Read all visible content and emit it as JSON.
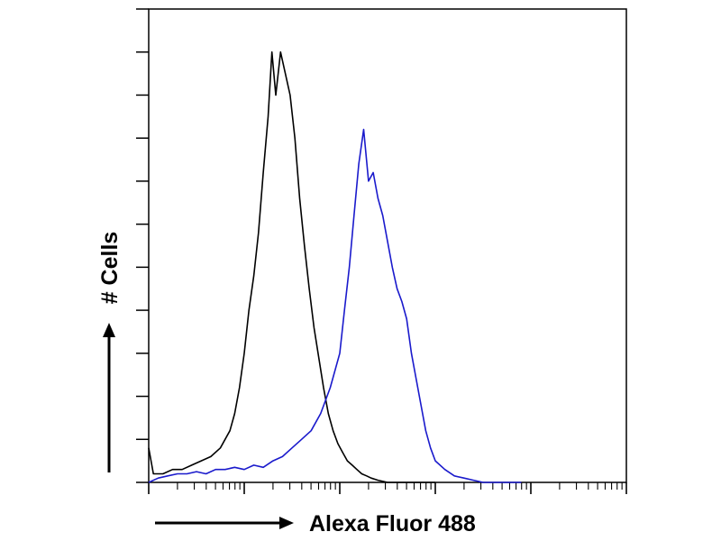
{
  "chart_data": {
    "type": "line",
    "title": "",
    "xlabel": "Alexa Fluor 488",
    "ylabel": "# Cells",
    "xscale": "log",
    "xlim": [
      1,
      100000
    ],
    "ylim": [
      0,
      1.1
    ],
    "grid": false,
    "legend": "none",
    "y_ticks": 11,
    "series": [
      {
        "color": "#000000",
        "x": [
          1.0,
          1.12,
          1.41,
          1.78,
          2.24,
          2.82,
          3.55,
          4.47,
          5.62,
          7.08,
          7.94,
          8.91,
          10.0,
          11.2,
          12.6,
          14.1,
          15.8,
          17.8,
          19.5,
          21.4,
          24.0,
          26.9,
          30.2,
          33.9,
          38.0,
          42.7,
          47.9,
          53.7,
          60.3,
          67.6,
          75.9,
          85.1,
          95.5,
          107,
          120,
          135,
          151,
          170,
          191,
          213,
          251,
          316,
          501,
          1000
        ],
        "values": [
          0.08,
          0.02,
          0.02,
          0.03,
          0.03,
          0.04,
          0.05,
          0.06,
          0.08,
          0.12,
          0.16,
          0.22,
          0.3,
          0.4,
          0.48,
          0.58,
          0.72,
          0.85,
          1.0,
          0.9,
          1.0,
          0.95,
          0.9,
          0.8,
          0.66,
          0.55,
          0.45,
          0.36,
          0.29,
          0.22,
          0.16,
          0.12,
          0.09,
          0.07,
          0.05,
          0.04,
          0.03,
          0.02,
          0.015,
          0.01,
          0.005,
          0.0,
          0.0,
          0.0
        ]
      },
      {
        "color": "#1a1acc",
        "x": [
          1.0,
          1.26,
          1.58,
          2.0,
          2.51,
          3.16,
          3.98,
          5.01,
          6.31,
          7.94,
          10.0,
          12.6,
          15.8,
          20.0,
          25.1,
          31.6,
          39.8,
          50.1,
          63.1,
          79.4,
          100,
          112,
          126,
          141,
          158,
          178,
          200,
          224,
          251,
          282,
          316,
          355,
          398,
          447,
          501,
          562,
          631,
          708,
          794,
          891,
          1000,
          1259,
          1585,
          1995,
          2512,
          3162,
          3981,
          5012,
          6310,
          7943
        ],
        "values": [
          0.0,
          0.01,
          0.015,
          0.02,
          0.02,
          0.025,
          0.02,
          0.03,
          0.03,
          0.035,
          0.03,
          0.04,
          0.035,
          0.05,
          0.06,
          0.08,
          0.1,
          0.12,
          0.16,
          0.22,
          0.3,
          0.4,
          0.5,
          0.62,
          0.74,
          0.82,
          0.7,
          0.72,
          0.66,
          0.62,
          0.56,
          0.5,
          0.45,
          0.42,
          0.38,
          0.3,
          0.24,
          0.18,
          0.12,
          0.08,
          0.05,
          0.03,
          0.015,
          0.01,
          0.005,
          0.0,
          0.0,
          0.0,
          0.0,
          0.0
        ]
      }
    ]
  }
}
